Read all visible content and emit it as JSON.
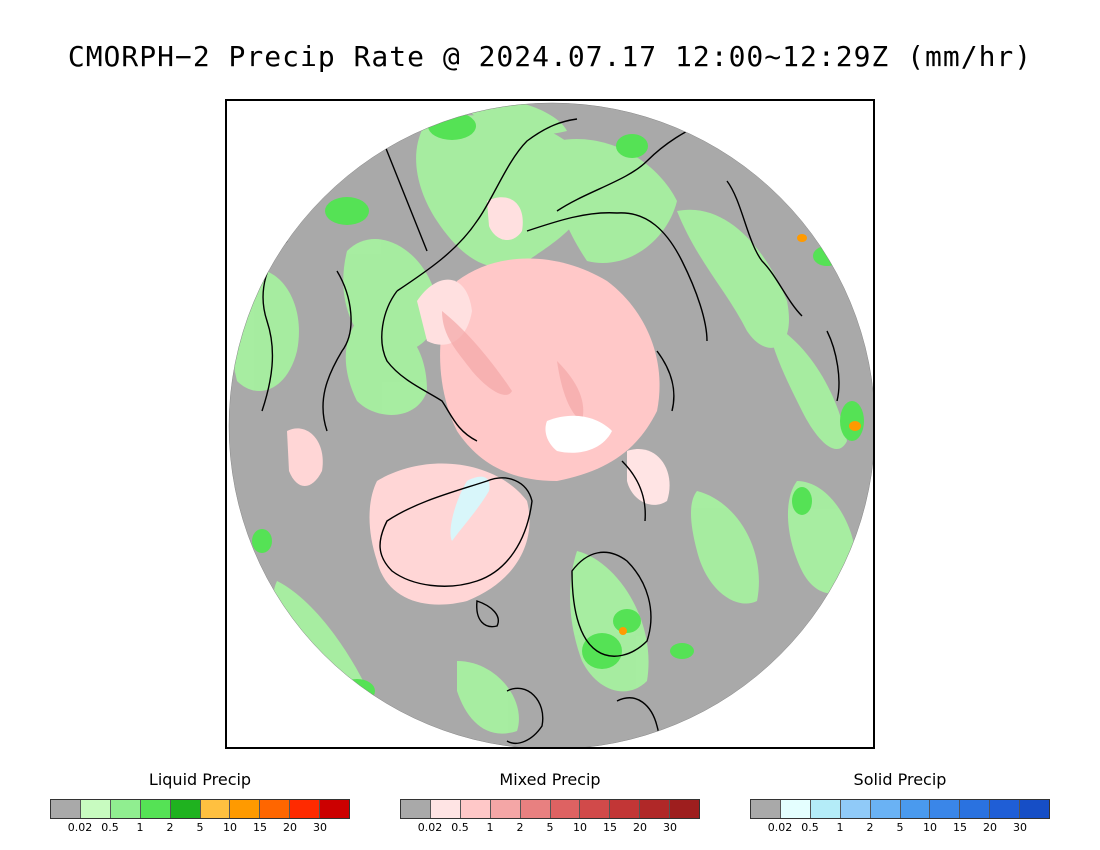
{
  "title": "CMORPH−2 Precip Rate @ 2024.07.17 12:00~12:29Z (mm/hr)",
  "map": {
    "projection": "north-polar-stereographic",
    "background_color": "#a9a9a9",
    "coastline_color": "#000000"
  },
  "legends": [
    {
      "id": "liquid",
      "title": "Liquid Precip",
      "colors": [
        "#a9a9a9",
        "#c8fbc0",
        "#90ee90",
        "#55e255",
        "#1fb21f",
        "#ffc040",
        "#ff9a00",
        "#ff6600",
        "#ff2a00",
        "#cc0000"
      ],
      "ticks": [
        "0.02",
        "0.5",
        "1",
        "2",
        "5",
        "10",
        "15",
        "20",
        "30"
      ]
    },
    {
      "id": "mixed",
      "title": "Mixed Precip",
      "colors": [
        "#a9a9a9",
        "#ffe4e4",
        "#ffc8c8",
        "#f4a6a6",
        "#e88080",
        "#de6262",
        "#d14a4a",
        "#c23636",
        "#b02828",
        "#9e1e1e"
      ],
      "ticks": [
        "0.02",
        "0.5",
        "1",
        "2",
        "5",
        "10",
        "15",
        "20",
        "30"
      ]
    },
    {
      "id": "solid",
      "title": "Solid Precip",
      "colors": [
        "#a9a9a9",
        "#e4ffff",
        "#b4ecf8",
        "#90caf8",
        "#6ab2f4",
        "#4a9aee",
        "#3a86e8",
        "#2a72e0",
        "#1f5ed6",
        "#164ec6"
      ],
      "ticks": [
        "0.02",
        "0.5",
        "1",
        "2",
        "5",
        "10",
        "15",
        "20",
        "30"
      ]
    }
  ]
}
